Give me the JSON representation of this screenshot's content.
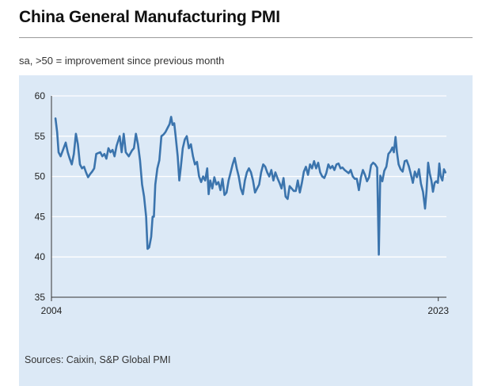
{
  "header": {
    "title": "China General Manufacturing PMI",
    "subtitle": "sa, >50 = improvement since previous month"
  },
  "footer": {
    "source": "Sources: Caixin, S&P Global PMI"
  },
  "colors": {
    "line": "#3b74ad",
    "panel_bg": "#dce9f6",
    "grid": "#ffffff",
    "axis": "#333333"
  },
  "chart_data": {
    "type": "line",
    "title": "China General Manufacturing PMI",
    "subtitle": "sa, >50 = improvement since previous month",
    "xlabel": "",
    "ylabel": "",
    "ylim": [
      35,
      60
    ],
    "yticks": [
      35,
      40,
      45,
      50,
      55,
      60
    ],
    "xlim": [
      2004.0,
      2023.4
    ],
    "xtick_labels": [
      {
        "value": 2004.0,
        "label": "2004"
      },
      {
        "value": 2023.0,
        "label": "2023"
      }
    ],
    "grid": "horizontal",
    "legend": "none",
    "series": [
      {
        "points": [
          [
            2004.2,
            57.2
          ],
          [
            2004.28,
            55.5
          ],
          [
            2004.35,
            53.0
          ],
          [
            2004.45,
            52.5
          ],
          [
            2004.6,
            53.5
          ],
          [
            2004.7,
            54.2
          ],
          [
            2004.8,
            53.0
          ],
          [
            2004.9,
            52.2
          ],
          [
            2005.0,
            51.5
          ],
          [
            2005.1,
            52.8
          ],
          [
            2005.2,
            55.3
          ],
          [
            2005.3,
            54.0
          ],
          [
            2005.4,
            51.5
          ],
          [
            2005.5,
            51.0
          ],
          [
            2005.6,
            51.2
          ],
          [
            2005.7,
            50.5
          ],
          [
            2005.8,
            49.9
          ],
          [
            2005.9,
            50.3
          ],
          [
            2006.0,
            50.6
          ],
          [
            2006.1,
            51.0
          ],
          [
            2006.2,
            52.8
          ],
          [
            2006.3,
            52.9
          ],
          [
            2006.4,
            53.0
          ],
          [
            2006.5,
            52.5
          ],
          [
            2006.6,
            52.8
          ],
          [
            2006.7,
            52.2
          ],
          [
            2006.8,
            53.5
          ],
          [
            2006.9,
            53.0
          ],
          [
            2007.0,
            53.3
          ],
          [
            2007.1,
            52.5
          ],
          [
            2007.2,
            53.8
          ],
          [
            2007.35,
            55.0
          ],
          [
            2007.45,
            53.0
          ],
          [
            2007.55,
            55.3
          ],
          [
            2007.65,
            53.0
          ],
          [
            2007.8,
            52.5
          ],
          [
            2007.95,
            53.2
          ],
          [
            2008.05,
            53.5
          ],
          [
            2008.15,
            55.3
          ],
          [
            2008.25,
            54.0
          ],
          [
            2008.35,
            52.0
          ],
          [
            2008.45,
            49.0
          ],
          [
            2008.55,
            47.5
          ],
          [
            2008.65,
            45.0
          ],
          [
            2008.72,
            41.0
          ],
          [
            2008.8,
            41.2
          ],
          [
            2008.9,
            42.5
          ],
          [
            2008.97,
            45.0
          ],
          [
            2009.03,
            45.0
          ],
          [
            2009.1,
            49.0
          ],
          [
            2009.2,
            51.0
          ],
          [
            2009.3,
            52.0
          ],
          [
            2009.4,
            55.0
          ],
          [
            2009.5,
            55.2
          ],
          [
            2009.6,
            55.5
          ],
          [
            2009.7,
            56.0
          ],
          [
            2009.8,
            56.5
          ],
          [
            2009.88,
            57.4
          ],
          [
            2009.95,
            56.4
          ],
          [
            2010.03,
            56.6
          ],
          [
            2010.1,
            55.0
          ],
          [
            2010.2,
            52.5
          ],
          [
            2010.28,
            49.5
          ],
          [
            2010.35,
            51.0
          ],
          [
            2010.45,
            53.5
          ],
          [
            2010.55,
            54.6
          ],
          [
            2010.65,
            55.0
          ],
          [
            2010.75,
            53.5
          ],
          [
            2010.85,
            54.0
          ],
          [
            2010.95,
            52.5
          ],
          [
            2011.05,
            51.5
          ],
          [
            2011.15,
            51.8
          ],
          [
            2011.25,
            50.0
          ],
          [
            2011.35,
            49.3
          ],
          [
            2011.45,
            50.0
          ],
          [
            2011.55,
            49.5
          ],
          [
            2011.65,
            51.0
          ],
          [
            2011.72,
            47.8
          ],
          [
            2011.8,
            49.5
          ],
          [
            2011.9,
            48.5
          ],
          [
            2012.0,
            49.9
          ],
          [
            2012.1,
            49.0
          ],
          [
            2012.2,
            49.3
          ],
          [
            2012.3,
            48.3
          ],
          [
            2012.4,
            49.7
          ],
          [
            2012.5,
            47.7
          ],
          [
            2012.6,
            48.0
          ],
          [
            2012.7,
            49.5
          ],
          [
            2012.8,
            50.5
          ],
          [
            2012.9,
            51.5
          ],
          [
            2013.0,
            52.3
          ],
          [
            2013.1,
            51.0
          ],
          [
            2013.2,
            50.0
          ],
          [
            2013.3,
            48.5
          ],
          [
            2013.4,
            47.8
          ],
          [
            2013.5,
            49.5
          ],
          [
            2013.6,
            50.5
          ],
          [
            2013.7,
            51.0
          ],
          [
            2013.8,
            50.5
          ],
          [
            2013.9,
            49.5
          ],
          [
            2014.0,
            48.0
          ],
          [
            2014.1,
            48.5
          ],
          [
            2014.2,
            49.0
          ],
          [
            2014.3,
            50.5
          ],
          [
            2014.4,
            51.5
          ],
          [
            2014.5,
            51.2
          ],
          [
            2014.6,
            50.5
          ],
          [
            2014.7,
            50.0
          ],
          [
            2014.8,
            50.8
          ],
          [
            2014.9,
            49.5
          ],
          [
            2015.0,
            50.5
          ],
          [
            2015.1,
            49.8
          ],
          [
            2015.2,
            49.2
          ],
          [
            2015.3,
            48.5
          ],
          [
            2015.4,
            49.8
          ],
          [
            2015.5,
            47.5
          ],
          [
            2015.6,
            47.2
          ],
          [
            2015.7,
            48.8
          ],
          [
            2015.8,
            48.5
          ],
          [
            2015.9,
            48.2
          ],
          [
            2016.0,
            48.2
          ],
          [
            2016.1,
            49.5
          ],
          [
            2016.2,
            48.0
          ],
          [
            2016.3,
            49.2
          ],
          [
            2016.4,
            50.6
          ],
          [
            2016.5,
            51.2
          ],
          [
            2016.6,
            50.2
          ],
          [
            2016.7,
            51.5
          ],
          [
            2016.8,
            51.0
          ],
          [
            2016.9,
            51.9
          ],
          [
            2017.0,
            51.0
          ],
          [
            2017.1,
            51.7
          ],
          [
            2017.2,
            50.5
          ],
          [
            2017.3,
            50.0
          ],
          [
            2017.4,
            49.8
          ],
          [
            2017.5,
            50.4
          ],
          [
            2017.6,
            51.5
          ],
          [
            2017.7,
            51.0
          ],
          [
            2017.8,
            51.3
          ],
          [
            2017.9,
            50.8
          ],
          [
            2018.0,
            51.5
          ],
          [
            2018.1,
            51.6
          ],
          [
            2018.2,
            51.0
          ],
          [
            2018.3,
            51.1
          ],
          [
            2018.4,
            50.8
          ],
          [
            2018.5,
            50.6
          ],
          [
            2018.6,
            50.4
          ],
          [
            2018.7,
            50.8
          ],
          [
            2018.8,
            50.0
          ],
          [
            2018.9,
            49.7
          ],
          [
            2019.0,
            49.7
          ],
          [
            2019.1,
            48.3
          ],
          [
            2019.2,
            49.9
          ],
          [
            2019.3,
            50.8
          ],
          [
            2019.4,
            50.2
          ],
          [
            2019.5,
            49.4
          ],
          [
            2019.6,
            49.9
          ],
          [
            2019.7,
            51.4
          ],
          [
            2019.8,
            51.7
          ],
          [
            2019.9,
            51.5
          ],
          [
            2020.0,
            51.1
          ],
          [
            2020.08,
            40.3
          ],
          [
            2020.15,
            50.1
          ],
          [
            2020.25,
            49.4
          ],
          [
            2020.35,
            50.7
          ],
          [
            2020.45,
            51.2
          ],
          [
            2020.55,
            52.8
          ],
          [
            2020.65,
            53.1
          ],
          [
            2020.75,
            53.6
          ],
          [
            2020.82,
            53.0
          ],
          [
            2020.9,
            54.9
          ],
          [
            2020.97,
            53.0
          ],
          [
            2021.05,
            51.5
          ],
          [
            2021.15,
            50.9
          ],
          [
            2021.25,
            50.6
          ],
          [
            2021.35,
            51.9
          ],
          [
            2021.45,
            52.0
          ],
          [
            2021.55,
            51.3
          ],
          [
            2021.65,
            50.3
          ],
          [
            2021.75,
            49.2
          ],
          [
            2021.85,
            50.6
          ],
          [
            2021.95,
            49.9
          ],
          [
            2022.05,
            50.9
          ],
          [
            2022.15,
            49.1
          ],
          [
            2022.25,
            48.1
          ],
          [
            2022.35,
            46.0
          ],
          [
            2022.42,
            48.1
          ],
          [
            2022.5,
            51.7
          ],
          [
            2022.58,
            50.4
          ],
          [
            2022.66,
            49.5
          ],
          [
            2022.74,
            48.1
          ],
          [
            2022.82,
            49.2
          ],
          [
            2022.9,
            49.4
          ],
          [
            2022.98,
            49.2
          ],
          [
            2023.05,
            51.6
          ],
          [
            2023.12,
            50.0
          ],
          [
            2023.2,
            49.5
          ],
          [
            2023.28,
            50.9
          ],
          [
            2023.35,
            50.5
          ]
        ]
      }
    ]
  }
}
